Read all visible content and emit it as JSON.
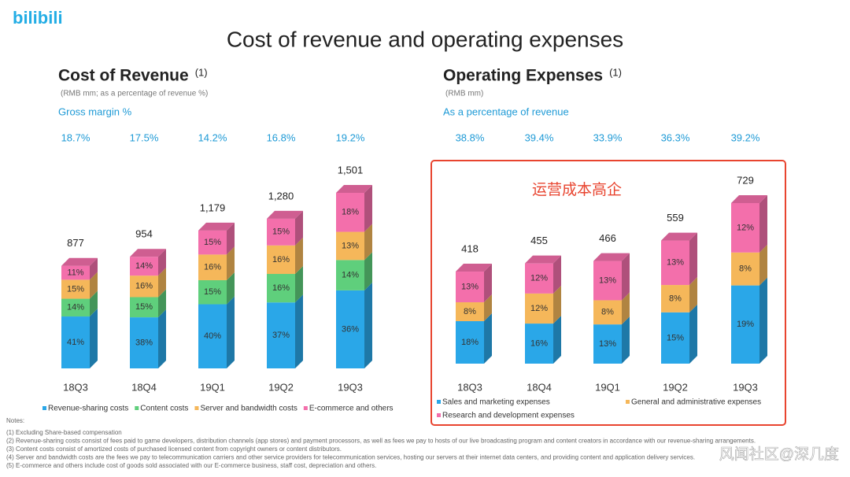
{
  "logo": "bilibili",
  "title": "Cost of revenue and operating expenses",
  "chart_data": [
    {
      "type": "bar",
      "title": "Cost of Revenue",
      "title_note": "(1)",
      "subtitle": "(RMB mm; as a percentage of revenue %)",
      "ratio_label": "Gross  margin  %",
      "ratio_values": [
        18.7,
        17.5,
        14.2,
        16.8,
        19.2
      ],
      "ratio_value_labels": [
        "18.7%",
        "17.5%",
        "14.2%",
        "16.8%",
        "19.2%"
      ],
      "categories": [
        "18Q3",
        "18Q4",
        "19Q1",
        "19Q2",
        "19Q3"
      ],
      "totals": [
        877,
        954,
        1179,
        1280,
        1501
      ],
      "totals_labels": [
        "877",
        "954",
        "1,179",
        "1,280",
        "1,501"
      ],
      "series": [
        {
          "name": "Revenue-sharing costs",
          "color": "#2aa7e8",
          "values": [
            41,
            38,
            40,
            37,
            36
          ],
          "value_labels": [
            "41%",
            "38%",
            "40%",
            "37%",
            "36%"
          ]
        },
        {
          "name": "Content costs",
          "color": "#5fcf7c",
          "values": [
            14,
            15,
            15,
            16,
            14
          ],
          "value_labels": [
            "14%",
            "15%",
            "15%",
            "16%",
            "14%"
          ]
        },
        {
          "name": "Server and bandwidth costs",
          "color": "#f5b75a",
          "values": [
            15,
            16,
            16,
            16,
            13
          ],
          "value_labels": [
            "15%",
            "16%",
            "16%",
            "16%",
            "13%"
          ]
        },
        {
          "name": "E-commerce and others",
          "color": "#f36fab",
          "values": [
            11,
            14,
            15,
            15,
            18
          ],
          "value_labels": [
            "11%",
            "14%",
            "15%",
            "15%",
            "18%"
          ]
        }
      ]
    },
    {
      "type": "bar",
      "title": "Operating Expenses",
      "title_note": "(1)",
      "subtitle": "(RMB mm)",
      "ratio_label": "As a percentage of revenue",
      "ratio_values": [
        38.8,
        39.4,
        33.9,
        36.3,
        39.2
      ],
      "ratio_value_labels": [
        "38.8%",
        "39.4%",
        "33.9%",
        "36.3%",
        "39.2%"
      ],
      "annotation": "运营成本高企",
      "categories": [
        "18Q3",
        "18Q4",
        "19Q1",
        "19Q2",
        "19Q3"
      ],
      "totals": [
        418,
        455,
        466,
        559,
        729
      ],
      "series": [
        {
          "name": "Sales and marketing expenses",
          "color": "#2aa7e8",
          "values": [
            18,
            16,
            13,
            15,
            19
          ],
          "value_labels": [
            "18%",
            "16%",
            "13%",
            "15%",
            "19%"
          ]
        },
        {
          "name": "General and administrative expenses",
          "color": "#f5b75a",
          "values": [
            8,
            12,
            8,
            8,
            8
          ],
          "value_labels": [
            "8%",
            "12%",
            "8%",
            "8%",
            "8%"
          ]
        },
        {
          "name": "Research and development expenses",
          "color": "#f36fab",
          "values": [
            13,
            12,
            13,
            13,
            12
          ],
          "value_labels": [
            "13%",
            "12%",
            "13%",
            "13%",
            "12%"
          ]
        }
      ]
    }
  ],
  "notes_title": "Notes:",
  "notes": [
    "(1)    Excluding Share-based compensation",
    "(2)    Revenue-sharing costs consist of fees paid to game developers, distribution channels (app stores) and payment processors, as well as fees we pay to hosts of our live broadcasting program and content creators in accordance with our revenue-sharing arrangements.",
    "(3)    Content costs consist of amortized costs of purchased licensed content from copyright owners or content distributors.",
    "(4)    Server and bandwidth costs are the fees we pay to telecommunication carriers and other service providers for telecommunication services, hosting our servers at their internet data centers, and providing content and application delivery services.",
    "(5)    E-commerce and others include cost of goods sold associated with our E-commerce business, staff cost, depreciation and others."
  ],
  "watermark": "风闻社区@深几度"
}
